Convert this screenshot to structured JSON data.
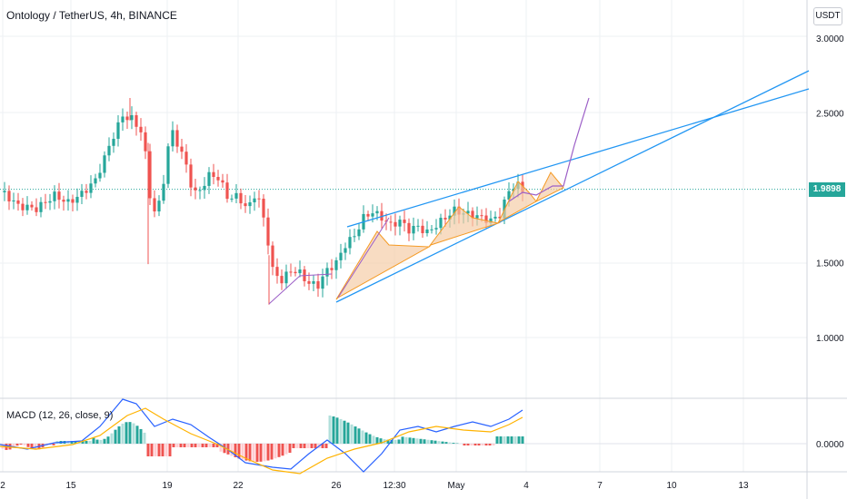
{
  "header": {
    "title": "Ontology / TetherUS, 4h, BINANCE",
    "currency_button": "USDT"
  },
  "current_price": {
    "label": "1.9898",
    "value": 1.9898,
    "color": "#26a69a"
  },
  "macd": {
    "title": "MACD (12, 26, close, 9)"
  },
  "colors": {
    "up": "#26a69a",
    "down": "#ef5350",
    "trendline": "#2196f3",
    "pattern_fill": "#f5c9a1",
    "pattern_line": "#f59a23",
    "projection": "#9c5fc7",
    "macd_line": "#2962ff",
    "signal_line": "#ffb300"
  },
  "chart_data": {
    "type": "candlestick",
    "y_axis": {
      "ticks": [
        "3.0000",
        "2.5000",
        "1.5000",
        "1.0000"
      ],
      "tick_values": [
        3.0,
        2.5,
        1.5,
        1.0
      ],
      "range": [
        0.6,
        3.2
      ]
    },
    "x_axis": {
      "ticks": [
        "2",
        "15",
        "19",
        "22",
        "26",
        "12:30",
        "May",
        "4",
        "7",
        "10",
        "13"
      ]
    },
    "macd_axis": {
      "ticks": [
        "0.0000"
      ]
    },
    "annotations": [
      "ascending wedge trendlines",
      "harmonic pattern drawings",
      "projected breakout path"
    ]
  }
}
